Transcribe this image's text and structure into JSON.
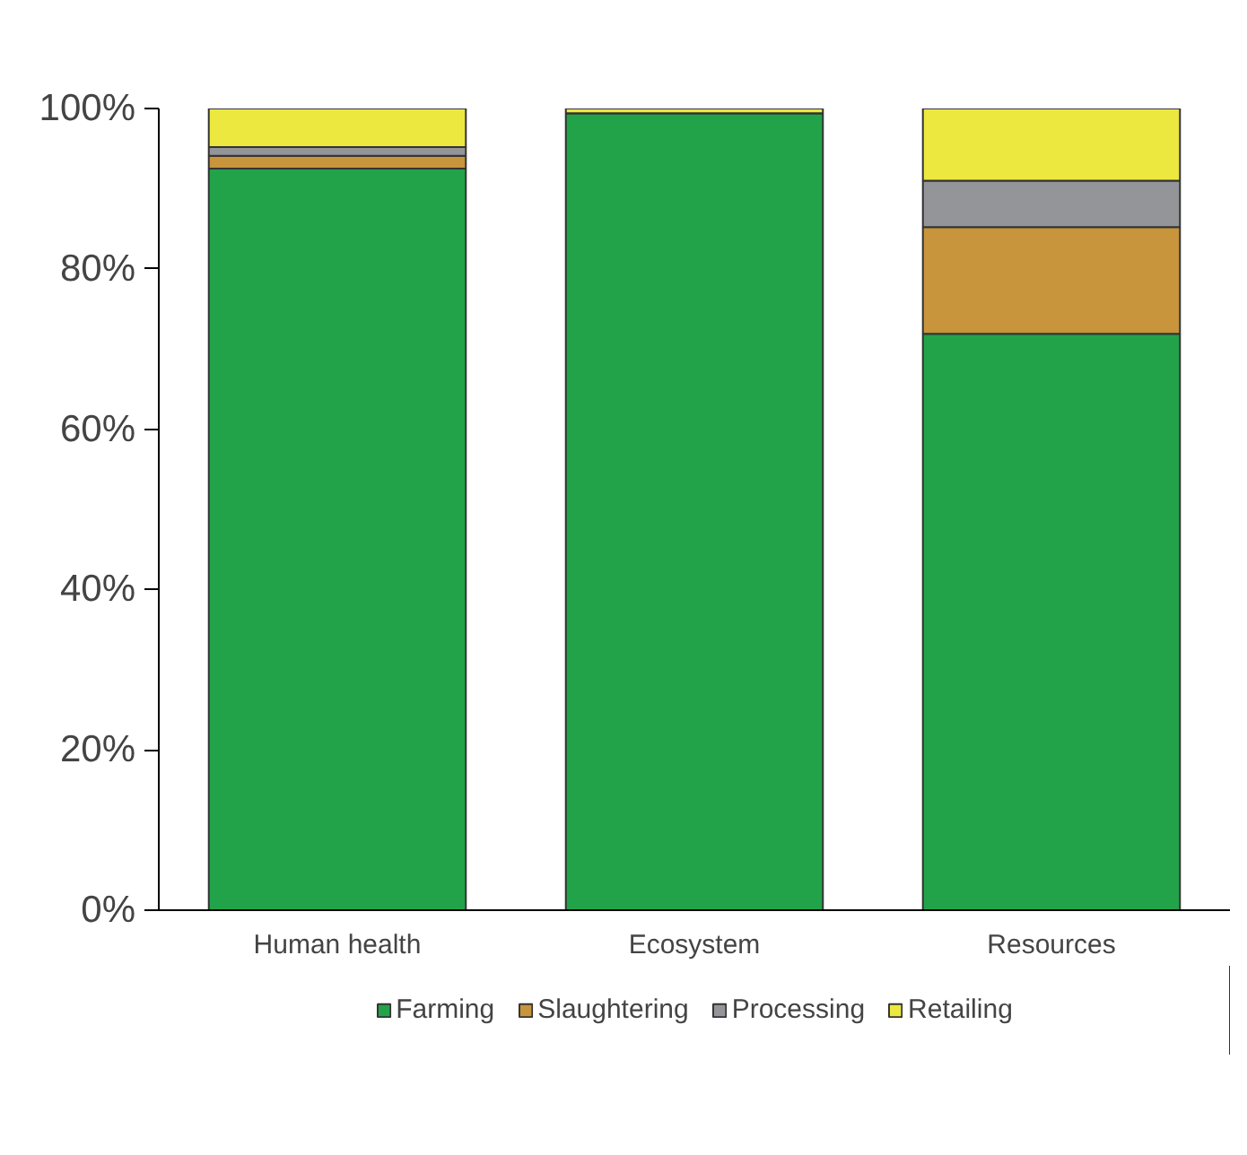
{
  "chart_data": {
    "type": "bar",
    "stacked": true,
    "categories": [
      "Human health",
      "Ecosystem",
      "Resources"
    ],
    "series": [
      {
        "name": "Farming",
        "color": "#22a34a",
        "values": [
          92.5,
          99.4,
          71.9
        ]
      },
      {
        "name": "Slaughtering",
        "color": "#c8943c",
        "values": [
          1.6,
          0,
          13.3
        ]
      },
      {
        "name": "Processing",
        "color": "#939598",
        "values": [
          1.1,
          0,
          5.8
        ]
      },
      {
        "name": "Retailing",
        "color": "#ece83f",
        "values": [
          4.8,
          0.6,
          9.0
        ]
      }
    ],
    "ylim": [
      0,
      100
    ],
    "yticks": [
      {
        "value": 0,
        "label": "0%"
      },
      {
        "value": 20,
        "label": "20%"
      },
      {
        "value": 40,
        "label": "40%"
      },
      {
        "value": 60,
        "label": "60%"
      },
      {
        "value": 80,
        "label": "80%"
      },
      {
        "value": 100,
        "label": "100%"
      }
    ],
    "grid": false,
    "legend": "bottom"
  }
}
